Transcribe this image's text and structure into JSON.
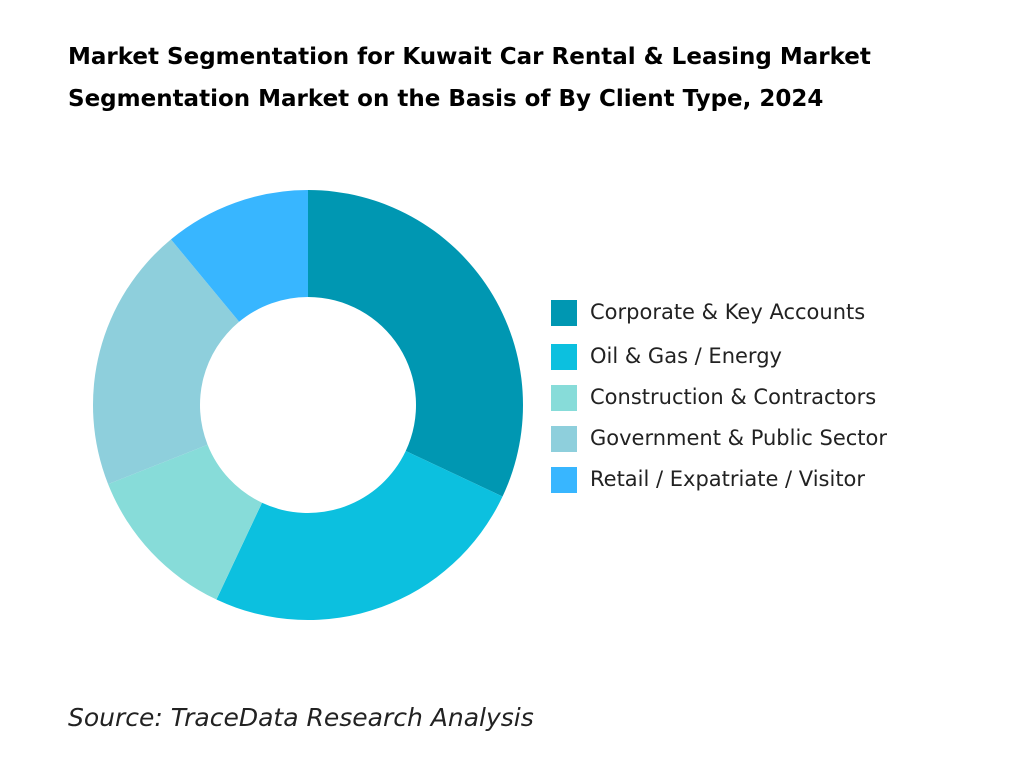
{
  "chart_data": {
    "type": "donut",
    "title": "Market Segmentation for Kuwait Car Rental & Leasing Market Segmentation Market on the Basis of By Client Type, 2024",
    "categories": [
      "Corporate & Key Accounts",
      "Oil & Gas / Energy",
      "Construction & Contractors",
      "Government & Public Sector",
      "Retail / Expatriate / Visitor"
    ],
    "values": [
      32,
      25,
      12,
      20,
      11
    ],
    "colors": [
      "#0097b2",
      "#0cc0df",
      "#87dcd9",
      "#8ecfdc",
      "#38b6ff"
    ],
    "source": "Source: TraceData Research Analysis"
  }
}
